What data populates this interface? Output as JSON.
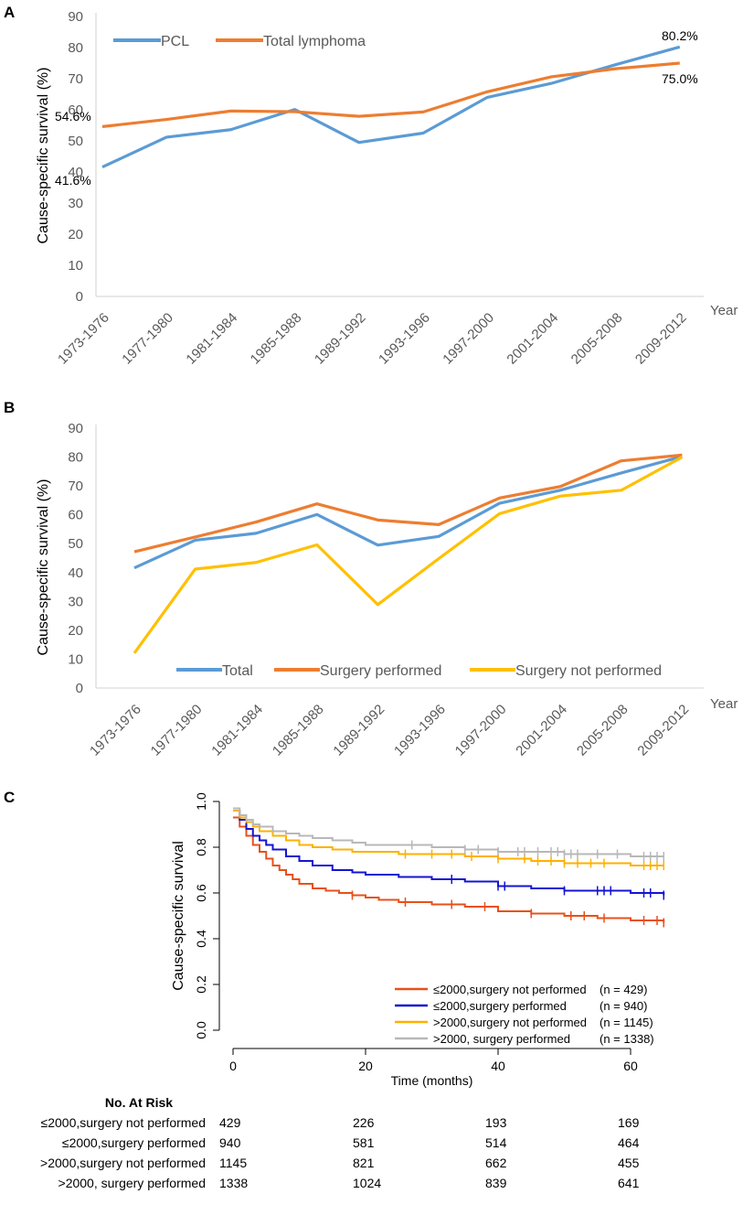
{
  "chart_data": [
    {
      "panel": "A",
      "type": "line",
      "categories": [
        "1973-1976",
        "1977-1980",
        "1981-1984",
        "1985-1988",
        "1989-1992",
        "1993-1996",
        "1997-2000",
        "2001-2004",
        "2005-2008",
        "2009-2012"
      ],
      "series": [
        {
          "name": "PCL",
          "color": "#5B9BD5",
          "values": [
            41.6,
            51.2,
            53.6,
            60.1,
            49.5,
            52.5,
            64.0,
            68.5,
            74.5,
            80.2
          ]
        },
        {
          "name": "Total lymphoma",
          "color": "#ED7D31",
          "values": [
            54.6,
            56.9,
            59.6,
            59.4,
            57.9,
            59.3,
            65.8,
            70.6,
            73.2,
            75.0
          ]
        }
      ],
      "annotations": [
        "54.6%",
        "41.6%",
        "80.2%",
        "75.0%"
      ],
      "ylabel": "Cause-specific survival (%)",
      "xlabel": "Year",
      "ylim": [
        0,
        90
      ],
      "yticks": [
        "0",
        "10",
        "20",
        "30",
        "40",
        "50",
        "60",
        "70",
        "80",
        "90"
      ]
    },
    {
      "panel": "B",
      "type": "line",
      "categories": [
        "1973-1976",
        "1977-1980",
        "1981-1984",
        "1985-1988",
        "1989-1992",
        "1993-1996",
        "1997-2000",
        "2001-2004",
        "2005-2008",
        "2009-2012"
      ],
      "series": [
        {
          "name": "Total",
          "color": "#5B9BD5",
          "values": [
            41.6,
            51.2,
            53.6,
            60.1,
            49.5,
            52.5,
            64.0,
            68.5,
            74.5,
            80.2
          ]
        },
        {
          "name": "Surgery performed",
          "color": "#ED7D31",
          "values": [
            47.2,
            52.3,
            57.5,
            63.8,
            58.2,
            56.6,
            65.8,
            69.8,
            78.7,
            80.7
          ]
        },
        {
          "name": "Surgery not performed",
          "color": "#FFC000",
          "values": [
            12.1,
            41.2,
            43.5,
            49.6,
            28.9,
            44.8,
            60.4,
            66.5,
            68.5,
            80.0
          ]
        }
      ],
      "ylabel": "Cause-specific survival (%)",
      "xlabel": "Year",
      "ylim": [
        0,
        90
      ],
      "yticks": [
        "0",
        "10",
        "20",
        "30",
        "40",
        "50",
        "60",
        "70",
        "80",
        "90"
      ]
    },
    {
      "panel": "C",
      "type": "line",
      "xlabel": "Time (months)",
      "ylabel": "Cause-specific survival",
      "xlim": [
        0,
        65
      ],
      "ylim": [
        0.0,
        1.0
      ],
      "xticks": [
        "0",
        "20",
        "40",
        "60"
      ],
      "yticks": [
        "0.0",
        "0.2",
        "0.4",
        "0.6",
        "0.8",
        "1.0"
      ],
      "series": [
        {
          "name": "≤2000,surgery not performed",
          "n": "(n = 429)",
          "color": "#E8501A",
          "x": [
            0,
            1,
            2,
            3,
            4,
            5,
            6,
            7,
            8,
            9,
            10,
            12,
            14,
            16,
            18,
            20,
            22,
            25,
            30,
            35,
            40,
            45,
            50,
            55,
            60,
            65
          ],
          "y": [
            0.93,
            0.89,
            0.85,
            0.81,
            0.78,
            0.75,
            0.72,
            0.7,
            0.68,
            0.66,
            0.64,
            0.62,
            0.61,
            0.6,
            0.59,
            0.58,
            0.57,
            0.56,
            0.55,
            0.54,
            0.52,
            0.51,
            0.5,
            0.49,
            0.48,
            0.47
          ],
          "censor_x": [
            18,
            26,
            33,
            38,
            45,
            51,
            53,
            56,
            62,
            64,
            65
          ]
        },
        {
          "name": "≤2000,surgery performed",
          "n": "(n = 940)",
          "color": "#1414D2",
          "x": [
            0,
            1,
            2,
            3,
            4,
            5,
            6,
            8,
            10,
            12,
            15,
            18,
            20,
            25,
            30,
            35,
            40,
            45,
            50,
            55,
            60,
            65
          ],
          "y": [
            0.96,
            0.92,
            0.88,
            0.85,
            0.83,
            0.81,
            0.79,
            0.76,
            0.74,
            0.72,
            0.7,
            0.69,
            0.68,
            0.67,
            0.66,
            0.65,
            0.63,
            0.62,
            0.61,
            0.61,
            0.6,
            0.59
          ],
          "censor_x": [
            33,
            40,
            41,
            50,
            55,
            56,
            57,
            62,
            63,
            65
          ]
        },
        {
          "name": ">2000,surgery not performed",
          "n": "(n = 1145)",
          "color": "#FFB000",
          "x": [
            0,
            1,
            2,
            3,
            4,
            6,
            8,
            10,
            12,
            15,
            18,
            20,
            25,
            30,
            35,
            40,
            45,
            50,
            55,
            60,
            65
          ],
          "y": [
            0.96,
            0.93,
            0.91,
            0.89,
            0.87,
            0.85,
            0.83,
            0.81,
            0.8,
            0.79,
            0.78,
            0.78,
            0.77,
            0.77,
            0.76,
            0.75,
            0.74,
            0.73,
            0.73,
            0.72,
            0.72
          ],
          "censor_x": [
            26,
            30,
            33,
            36,
            40,
            44,
            46,
            48,
            50,
            52,
            54,
            56,
            62,
            63,
            64,
            65
          ]
        },
        {
          "name": ">2000, surgery performed",
          "n": "(n = 1338)",
          "color": "#B8B8B8",
          "x": [
            0,
            1,
            2,
            3,
            4,
            6,
            8,
            10,
            12,
            15,
            18,
            20,
            25,
            30,
            35,
            40,
            45,
            50,
            55,
            60,
            65
          ],
          "y": [
            0.97,
            0.94,
            0.92,
            0.9,
            0.89,
            0.87,
            0.86,
            0.85,
            0.84,
            0.83,
            0.82,
            0.81,
            0.81,
            0.8,
            0.79,
            0.78,
            0.78,
            0.77,
            0.77,
            0.76,
            0.76
          ],
          "censor_x": [
            27,
            35,
            37,
            40,
            43,
            44,
            46,
            48,
            49,
            50,
            51,
            52,
            55,
            58,
            62,
            63,
            64,
            65
          ]
        }
      ],
      "risk_table": {
        "title": "No. At Risk",
        "rows": [
          {
            "label": "≤2000,surgery not performed",
            "values": [
              "429",
              "226",
              "193",
              "169"
            ]
          },
          {
            "label": "≤2000,surgery performed",
            "values": [
              "940",
              "581",
              "514",
              "464"
            ]
          },
          {
            "label": ">2000,surgery not performed",
            "values": [
              "1145",
              "821",
              "662",
              "455"
            ]
          },
          {
            "label": ">2000, surgery performed",
            "values": [
              "1338",
              "1024",
              "839",
              "641"
            ]
          }
        ]
      }
    }
  ],
  "panel_labels": {
    "a": "A",
    "b": "B",
    "c": "C"
  }
}
